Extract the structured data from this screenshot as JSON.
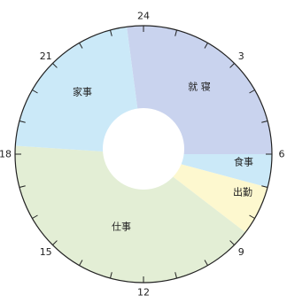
{
  "diagram": {
    "type": "24-hour circular schedule",
    "hour_labels": [
      {
        "hour": 24,
        "text": "24"
      },
      {
        "hour": 3,
        "text": "3"
      },
      {
        "hour": 6,
        "text": "6"
      },
      {
        "hour": 9,
        "text": "9"
      },
      {
        "hour": 12,
        "text": "12"
      },
      {
        "hour": 15,
        "text": "15"
      },
      {
        "hour": 18,
        "text": "18"
      },
      {
        "hour": 21,
        "text": "21"
      }
    ],
    "tick_hours": 24,
    "segments": [
      {
        "id": "sleep",
        "label": "就 寝",
        "start": 23.5,
        "end": 6.0,
        "color": "#c9d3ee"
      },
      {
        "id": "meal",
        "label": "食事",
        "start": 6.0,
        "end": 7.0,
        "color": "#cbe9f8"
      },
      {
        "id": "commute",
        "label": "出勤",
        "start": 7.0,
        "end": 8.5,
        "color": "#fdf8cf"
      },
      {
        "id": "work",
        "label": "仕事",
        "start": 8.5,
        "end": 18.25,
        "color": "#e3eed5"
      },
      {
        "id": "housework",
        "label": "家事",
        "start": 18.25,
        "end": 23.5,
        "color": "#cbe9f8"
      }
    ]
  }
}
